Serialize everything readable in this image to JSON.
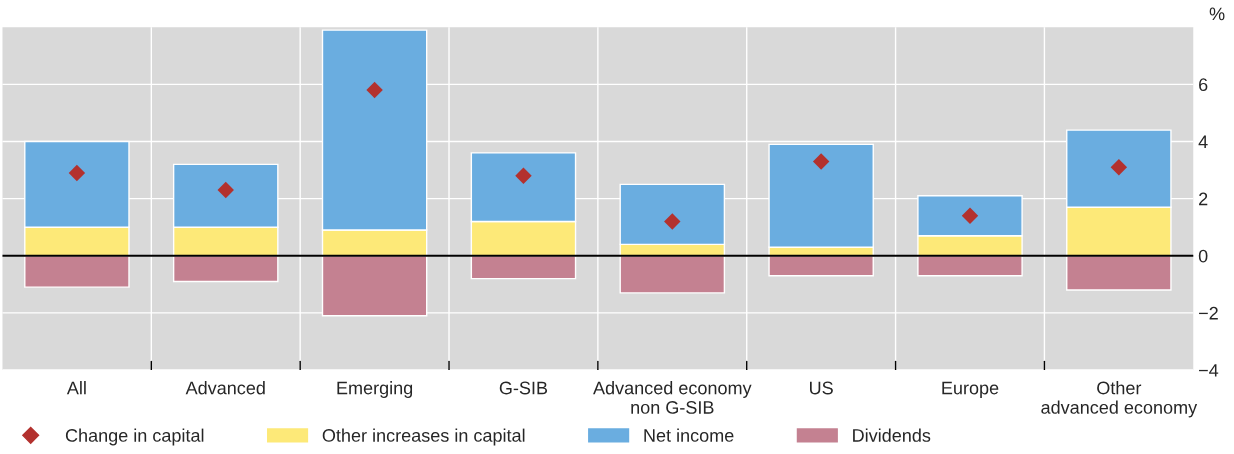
{
  "chart_data": {
    "type": "bar",
    "stacked": true,
    "ylabel": "%",
    "categories": [
      "All",
      "Advanced",
      "Emerging",
      "G-SIB",
      "Advanced economy\nnon G-SIB",
      "US",
      "Europe",
      "Other\nadvanced economy"
    ],
    "series": [
      {
        "name": "Change in capital",
        "type": "scatter",
        "marker": "diamond",
        "color": "#b3312e",
        "values": [
          2.9,
          2.3,
          5.8,
          2.8,
          1.2,
          3.3,
          1.4,
          3.1
        ]
      },
      {
        "name": "Other increases in capital",
        "color": "#fde978",
        "values": [
          1.0,
          1.0,
          0.9,
          1.2,
          0.4,
          0.3,
          0.7,
          1.7
        ]
      },
      {
        "name": "Net income",
        "color": "#6aade0",
        "values": [
          3.0,
          2.2,
          7.0,
          2.4,
          2.1,
          3.6,
          1.4,
          2.7
        ]
      },
      {
        "name": "Dividends",
        "color": "#c48191",
        "values": [
          -1.1,
          -0.9,
          -2.1,
          -0.8,
          -1.3,
          -0.7,
          -0.7,
          -1.2
        ]
      }
    ],
    "ylim": [
      -4,
      8
    ],
    "yticks": [
      -4,
      -2,
      0,
      2,
      4,
      6
    ],
    "ref_lines": [
      {
        "axis": "y",
        "value": 0,
        "color": "#000000"
      }
    ],
    "grid": true,
    "legend": "bottom"
  }
}
